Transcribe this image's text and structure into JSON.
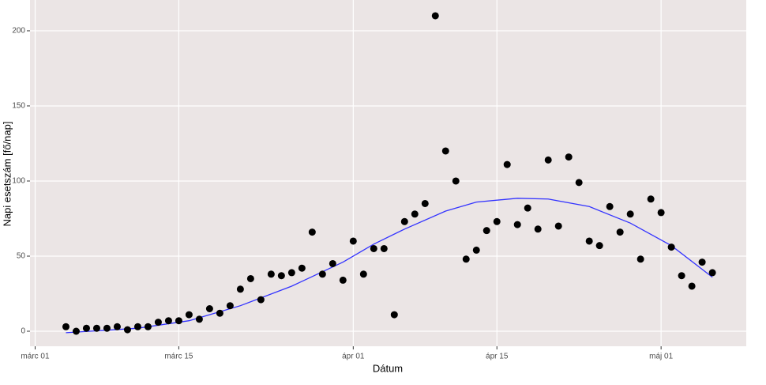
{
  "chart_data": {
    "type": "scatter",
    "x_label": "Dátum",
    "y_label": "Napi esetszám [fő/nap]",
    "x": [
      3,
      4,
      5,
      6,
      7,
      8,
      9,
      10,
      11,
      12,
      13,
      14,
      15,
      16,
      17,
      18,
      19,
      20,
      21,
      22,
      23,
      24,
      25,
      26,
      27,
      28,
      29,
      30,
      31,
      32,
      33,
      34,
      35,
      36,
      37,
      38,
      39,
      40,
      41,
      42,
      43,
      44,
      45,
      46,
      47,
      48,
      49,
      50,
      51,
      52,
      53,
      54,
      55,
      56,
      57,
      58,
      59,
      60,
      61,
      62,
      63,
      64,
      65,
      66
    ],
    "values": [
      3,
      0,
      2,
      2,
      2,
      3,
      1,
      3,
      3,
      6,
      7,
      7,
      11,
      8,
      15,
      12,
      17,
      28,
      35,
      21,
      38,
      37,
      39,
      42,
      66,
      38,
      45,
      34,
      60,
      38,
      55,
      55,
      11,
      73,
      78,
      85,
      210,
      120,
      100,
      48,
      54,
      67,
      73,
      111,
      71,
      82,
      68,
      114,
      70,
      116,
      99,
      60,
      57,
      83,
      66,
      78,
      48,
      88,
      79,
      56,
      37,
      30,
      46,
      39
    ],
    "color": "#000000",
    "smooth": {
      "x": [
        3,
        10,
        15,
        20,
        25,
        30,
        33,
        36,
        40,
        43,
        47,
        50,
        54,
        58,
        62,
        66
      ],
      "values": [
        -1,
        2,
        7,
        17,
        30,
        46,
        58,
        68,
        80,
        86,
        88.5,
        88,
        83,
        72,
        57,
        36
      ],
      "color": "#3333ff"
    },
    "xlim": [
      -0.5,
      69.3
    ],
    "ylim": [
      -10,
      220.5
    ],
    "xticks": [
      {
        "value": 0,
        "label": "márc 01"
      },
      {
        "value": 14,
        "label": "márc 15"
      },
      {
        "value": 31,
        "label": "ápr 01"
      },
      {
        "value": 45,
        "label": "ápr 15"
      },
      {
        "value": 61,
        "label": "máj 01"
      }
    ],
    "yticks": [
      0,
      50,
      100,
      150,
      200
    ],
    "grid": true,
    "background": "#ebe5e5"
  }
}
